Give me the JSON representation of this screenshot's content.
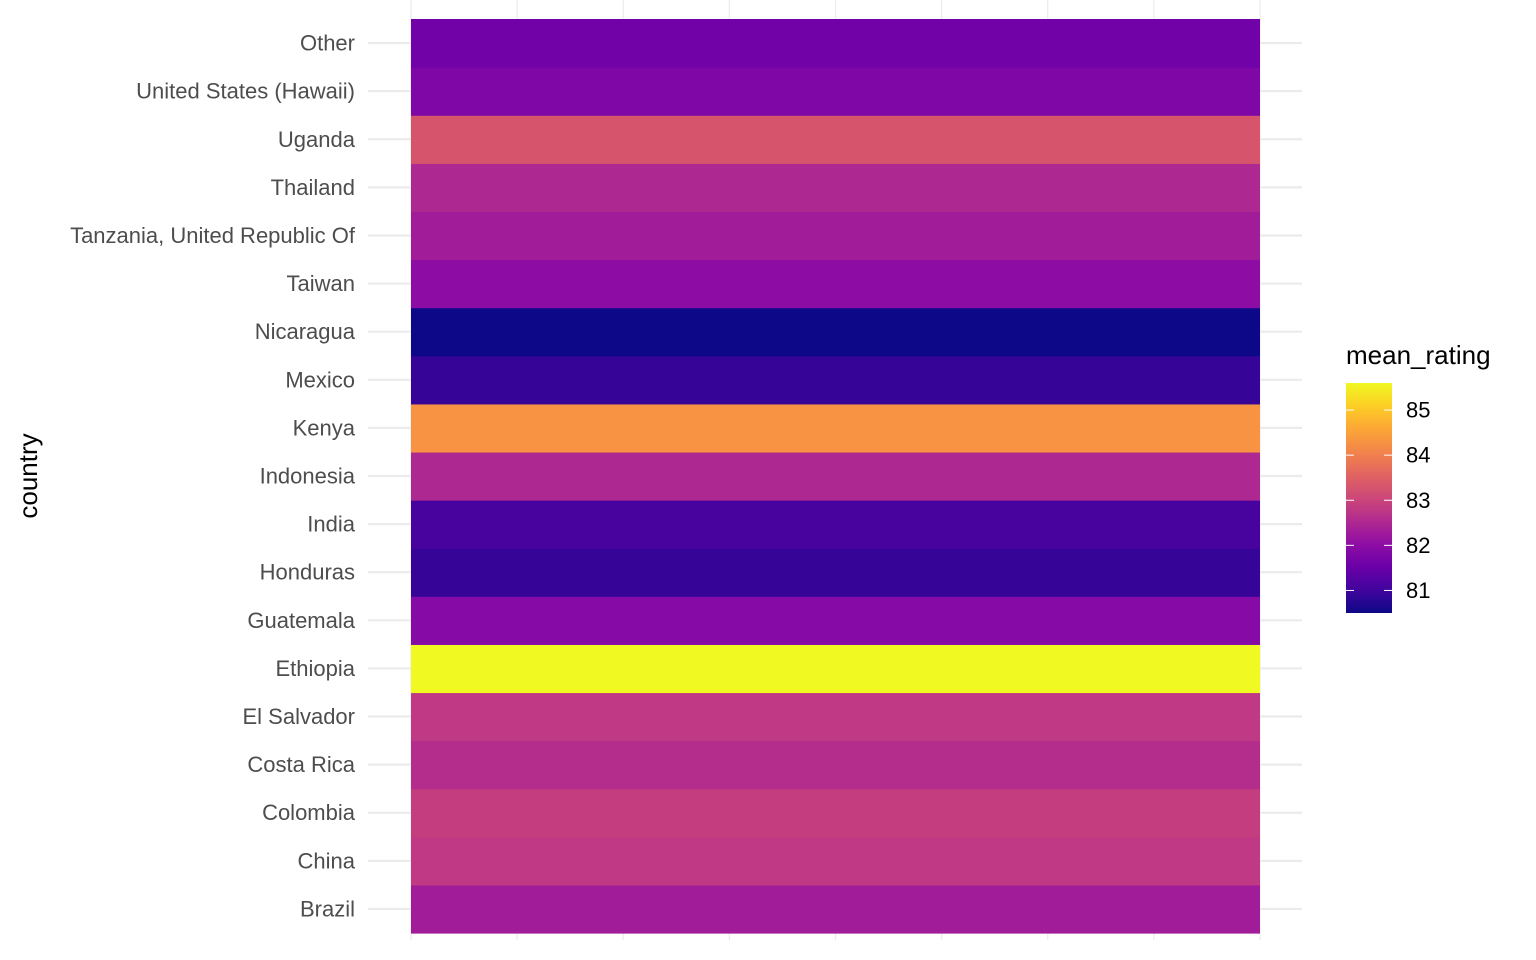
{
  "chart_data": {
    "type": "heatmap",
    "title": "",
    "xlabel": "",
    "ylabel": "country",
    "grid": true,
    "legend_position": "right",
    "colormap": "plasma",
    "categories": [
      "Brazil",
      "China",
      "Colombia",
      "Costa Rica",
      "El Salvador",
      "Ethiopia",
      "Guatemala",
      "Honduras",
      "India",
      "Indonesia",
      "Kenya",
      "Mexico",
      "Nicaragua",
      "Taiwan",
      "Tanzania, United Republic Of",
      "Thailand",
      "Uganda",
      "United States (Hawaii)",
      "Other"
    ],
    "values": [
      82.3,
      82.8,
      82.9,
      82.6,
      82.8,
      85.6,
      81.9,
      80.9,
      81.1,
      82.5,
      84.3,
      80.9,
      80.5,
      82.0,
      82.3,
      82.5,
      83.3,
      81.8,
      81.6
    ],
    "legend": {
      "title": "mean_rating",
      "ticks": [
        81,
        82,
        83,
        84,
        85
      ],
      "range": [
        80.5,
        85.6
      ]
    }
  }
}
